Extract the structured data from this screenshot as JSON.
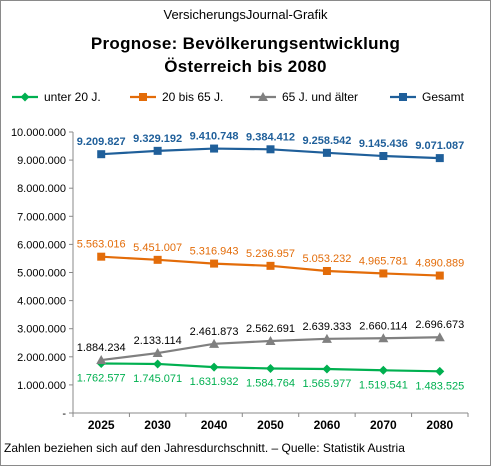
{
  "header": {
    "source_caption": "VersicherungsJournal-Grafik",
    "title_line_1": "Prognose:  Bevölkerungsentwicklung",
    "title_line_2": "Österreich bis 2080"
  },
  "footnote": "Zahlen beziehen sich auf den Jahresdurchschnitt. – Quelle: Statistik Austria",
  "chart_data": {
    "type": "line",
    "title": "Prognose:  Bevölkerungsentwicklung Österreich bis 2080",
    "xlabel": "",
    "ylabel": "",
    "categories": [
      "2025",
      "2030",
      "2040",
      "2050",
      "2060",
      "2070",
      "2080"
    ],
    "ylim": [
      0,
      10000000
    ],
    "yticks": [
      0,
      1000000,
      2000000,
      3000000,
      4000000,
      5000000,
      6000000,
      7000000,
      8000000,
      9000000,
      10000000
    ],
    "ytick_labels": [
      "-",
      "1.000.000",
      "2.000.000",
      "3.000.000",
      "4.000.000",
      "5.000.000",
      "6.000.000",
      "7.000.000",
      "8.000.000",
      "9.000.000",
      "10.000.000"
    ],
    "grid": false,
    "legend_position": "top",
    "series": [
      {
        "name": "unter 20 J.",
        "color": "#00b050",
        "marker": "diamond",
        "values": [
          1762577,
          1745071,
          1631932,
          1584764,
          1565977,
          1519541,
          1483525
        ],
        "labels": [
          "1.762.577",
          "1.745.071",
          "1.631.932",
          "1.584.764",
          "1.565.977",
          "1.519.541",
          "1.483.525"
        ],
        "label_position": "below",
        "label_bold": false
      },
      {
        "name": "20 bis 65 J.",
        "color": "#e36c09",
        "marker": "square",
        "values": [
          5563016,
          5451007,
          5316943,
          5236957,
          5053232,
          4965781,
          4890889
        ],
        "labels": [
          "5.563.016",
          "5.451.007",
          "5.316.943",
          "5.236.957",
          "5.053.232",
          "4.965.781",
          "4.890.889"
        ],
        "label_position": "above",
        "label_bold": false
      },
      {
        "name": "65 J. und älter",
        "color": "#808080",
        "marker": "triangle",
        "values": [
          1884234,
          2133114,
          2461873,
          2562691,
          2639333,
          2660114,
          2696673
        ],
        "labels": [
          "1.884.234",
          "2.133.114",
          "2.461.873",
          "2.562.691",
          "2.639.333",
          "2.660.114",
          "2.696.673"
        ],
        "label_position": "above",
        "label_color": "#000000",
        "label_bold": false
      },
      {
        "name": "Gesamt",
        "color": "#1f5f9a",
        "marker": "square",
        "values": [
          9209827,
          9329192,
          9410748,
          9384412,
          9258542,
          9145436,
          9071087
        ],
        "labels": [
          "9.209.827",
          "9.329.192",
          "9.410.748",
          "9.384.412",
          "9.258.542",
          "9.145.436",
          "9.071.087"
        ],
        "label_position": "above",
        "label_bold": true
      }
    ]
  }
}
